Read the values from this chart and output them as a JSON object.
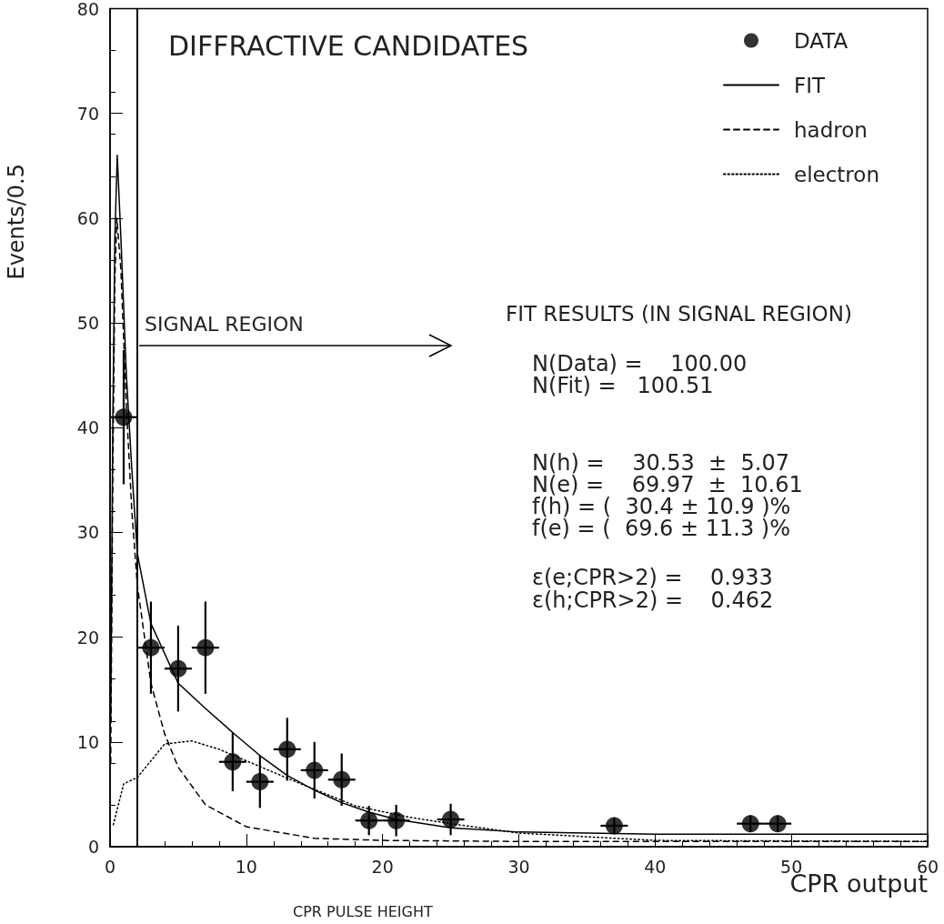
{
  "chart_data": {
    "type": "scatter",
    "title": "DIFFRACTIVE CANDIDATES",
    "xlabel": "CPR output",
    "ylabel": "Events/0.5",
    "xlim": [
      0,
      60
    ],
    "ylim": [
      0,
      80
    ],
    "xticks": [
      0,
      10,
      20,
      30,
      40,
      50,
      60
    ],
    "yticks": [
      0,
      10,
      20,
      30,
      40,
      50,
      60,
      70,
      80
    ],
    "grid": false,
    "legend": "top right",
    "ref_lines": [
      {
        "axis": "x",
        "value": 2,
        "label": "SIGNAL REGION",
        "color": "#000000"
      }
    ],
    "annotations": [
      "FIT RESULTS (IN SIGNAL REGION)",
      "N(Data) =    100.00",
      "N(Fit) =   100.51",
      "N(h) =    30.53  ±  5.07",
      "N(e) =    69.97  ±  10.61",
      "f(h) = (  30.4 ± 10.9 )%",
      "f(e) = (  69.6 ± 11.3 )%",
      "ε(e;CPR>2) =    0.933",
      "ε(h;CPR>2) =    0.462",
      "CPR PULSE HEIGHT"
    ],
    "series": [
      {
        "name": "DATA",
        "color": "#000000",
        "marker": "circle",
        "x": [
          1,
          3,
          5,
          7,
          9,
          11,
          13,
          15,
          17,
          19,
          21,
          25,
          37,
          47,
          49
        ],
        "values": [
          41,
          19,
          17,
          19,
          8.1,
          6.2,
          9.3,
          7.3,
          6.4,
          2.5,
          2.5,
          2.6,
          2.0,
          2.2,
          2.2
        ],
        "errors": [
          6.4,
          4.4,
          4.1,
          4.4,
          2.8,
          2.5,
          3,
          2.7,
          2.5,
          1.4,
          1.5,
          1.5,
          0.8,
          0.8,
          0.8
        ],
        "xerrors": [
          1,
          1,
          1,
          1,
          1,
          1,
          1,
          1,
          1,
          1,
          1,
          1,
          1,
          1,
          1
        ]
      },
      {
        "name": "FIT",
        "type": "line",
        "color": "#000000",
        "line_style": "solid",
        "marker": "none",
        "x": [
          0.05,
          0.2,
          0.35,
          0.53,
          0.8,
          1.2,
          1.6,
          2,
          3,
          5,
          7,
          9,
          11,
          13,
          15,
          17,
          19,
          21,
          25,
          30,
          40,
          50,
          60
        ],
        "values": [
          12,
          40,
          58,
          66,
          58,
          45,
          36,
          28,
          21.3,
          15.6,
          13.2,
          10.9,
          8.7,
          6.8,
          5.4,
          4.2,
          3.3,
          2.6,
          1.8,
          1.4,
          1.2,
          1.2,
          1.2
        ]
      },
      {
        "name": "hadron",
        "type": "line",
        "color": "#000000",
        "line_style": "dashed",
        "marker": "none",
        "x": [
          0.05,
          0.2,
          0.35,
          0.5,
          0.8,
          1.2,
          1.6,
          2,
          3,
          4,
          5,
          7,
          10,
          15,
          20,
          30,
          40,
          60
        ],
        "values": [
          8,
          35,
          54,
          60,
          55,
          42,
          32,
          25,
          15.6,
          10.8,
          7.6,
          4.0,
          1.9,
          0.8,
          0.6,
          0.5,
          0.5,
          0.5
        ]
      },
      {
        "name": "electron",
        "type": "line",
        "color": "#000000",
        "line_style": "dotted",
        "marker": "none",
        "x": [
          0.24,
          1,
          2,
          4,
          6,
          8,
          10,
          14,
          18,
          22,
          25,
          30,
          40,
          60
        ],
        "values": [
          2.1,
          6.0,
          6.6,
          9.8,
          10.1,
          9.3,
          8.2,
          6.0,
          3.9,
          2.8,
          2.2,
          1.3,
          0.6,
          0.5
        ]
      }
    ]
  }
}
